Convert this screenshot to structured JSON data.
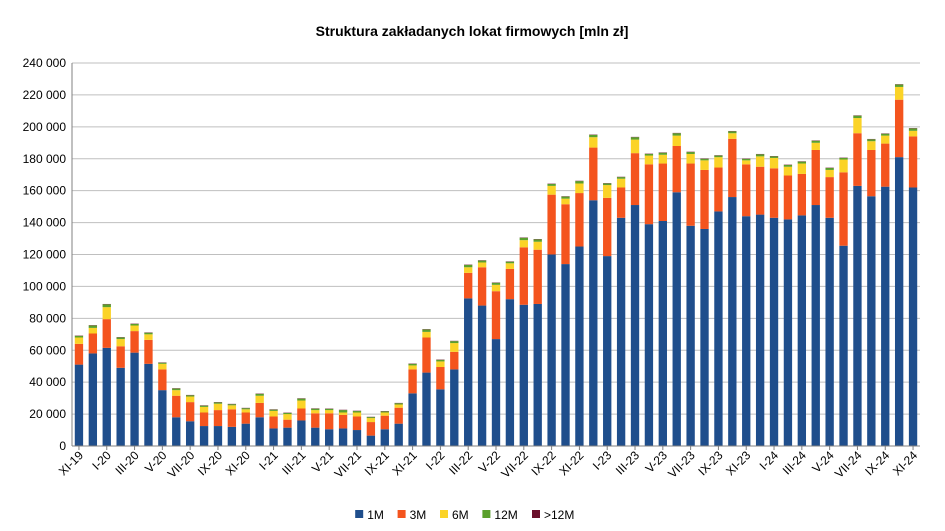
{
  "chart_data": {
    "type": "bar",
    "stacked": true,
    "title": "Struktura zakładanych lokat firmowych [mln zł]",
    "xlabel": "",
    "ylabel": "",
    "ylim": [
      0,
      240000
    ],
    "yticks": [
      0,
      20000,
      40000,
      60000,
      80000,
      100000,
      120000,
      140000,
      160000,
      180000,
      200000,
      220000,
      240000
    ],
    "ytick_labels": [
      "0",
      "20 000",
      "40 000",
      "60 000",
      "80 000",
      "100 000",
      "120 000",
      "140 000",
      "160 000",
      "180 000",
      "200 000",
      "220 000",
      "240 000"
    ],
    "grid": "horizontal",
    "legend_position": "bottom",
    "categories": [
      "XI-19",
      "XII-19",
      "I-20",
      "II-20",
      "III-20",
      "IV-20",
      "V-20",
      "VI-20",
      "VII-20",
      "VIII-20",
      "IX-20",
      "X-20",
      "XI-20",
      "XII-20",
      "I-21",
      "II-21",
      "III-21",
      "IV-21",
      "V-21",
      "VI-21",
      "VII-21",
      "VIII-21",
      "IX-21",
      "X-21",
      "XI-21",
      "XII-21",
      "I-22",
      "II-22",
      "III-22",
      "IV-22",
      "V-22",
      "VI-22",
      "VII-22",
      "VIII-22",
      "IX-22",
      "X-22",
      "XI-22",
      "XII-22",
      "I-23",
      "II-23",
      "III-23",
      "IV-23",
      "V-23",
      "VI-23",
      "VII-23",
      "VIII-23",
      "IX-23",
      "X-23",
      "XI-23",
      "XII-23",
      "I-24",
      "II-24",
      "III-24",
      "IV-24",
      "V-24",
      "VI-24",
      "VII-24",
      "VIII-24",
      "IX-24",
      "X-24",
      "XI-24"
    ],
    "tick_labels": [
      "XI-19",
      "I-20",
      "III-20",
      "V-20",
      "VII-20",
      "IX-20",
      "XI-20",
      "I-21",
      "III-21",
      "V-21",
      "VII-21",
      "IX-21",
      "XI-21",
      "I-22",
      "III-22",
      "V-22",
      "VII-22",
      "IX-22",
      "XI-22",
      "I-23",
      "III-23",
      "V-23",
      "VII-23",
      "IX-23",
      "XI-23",
      "I-24",
      "III-24",
      "V-24",
      "VII-24",
      "IX-24",
      "XI-24"
    ],
    "series": [
      {
        "name": "1M",
        "color": "#1f4e8c",
        "values": [
          51000,
          58000,
          61500,
          49000,
          58500,
          51500,
          35000,
          18000,
          15500,
          12500,
          12500,
          12000,
          14000,
          18000,
          11000,
          11500,
          16000,
          11500,
          10500,
          11000,
          10000,
          6500,
          10500,
          14000,
          33000,
          46000,
          35500,
          48000,
          92500,
          88000,
          67000,
          92000,
          88500,
          89000,
          120000,
          114000,
          125000,
          154000,
          119000,
          143000,
          151000,
          139000,
          141000,
          159000,
          138000,
          136000,
          147000,
          156000,
          144000,
          145000,
          143000,
          142000,
          144500,
          151000,
          143000,
          125500,
          163000,
          156500,
          162500,
          181000,
          162000
        ]
      },
      {
        "name": "3M",
        "color": "#f4541e",
        "values": [
          13000,
          12500,
          18000,
          13500,
          13500,
          15000,
          13000,
          13500,
          12000,
          8500,
          10000,
          11000,
          7000,
          9000,
          7500,
          5000,
          7500,
          9000,
          10000,
          8500,
          8500,
          8500,
          8500,
          10000,
          15000,
          22000,
          14000,
          11000,
          16000,
          24000,
          30000,
          19000,
          36000,
          34000,
          37500,
          37500,
          33500,
          33000,
          36500,
          19000,
          32500,
          37500,
          36000,
          29000,
          39000,
          37000,
          27500,
          36500,
          32500,
          30000,
          31000,
          27500,
          26000,
          34500,
          25500,
          46000,
          33000,
          29000,
          27000,
          36000,
          32000
        ]
      },
      {
        "name": "6M",
        "color": "#fbd327",
        "values": [
          4000,
          3500,
          7500,
          4500,
          3500,
          3500,
          3500,
          3500,
          3500,
          3500,
          4000,
          2500,
          2000,
          4500,
          3500,
          3500,
          5000,
          2000,
          2000,
          1500,
          2500,
          2500,
          2000,
          2000,
          2500,
          3500,
          3500,
          5500,
          3500,
          3000,
          4000,
          3500,
          4500,
          5000,
          5500,
          3500,
          6000,
          6500,
          8000,
          5500,
          8500,
          5500,
          5500,
          6500,
          6000,
          6000,
          6500,
          3500,
          2500,
          6500,
          6500,
          5500,
          6500,
          4500,
          4500,
          8000,
          9500,
          5500,
          5000,
          8000,
          3500
        ]
      },
      {
        "name": "12M",
        "color": "#5aa02c",
        "values": [
          1000,
          1500,
          1800,
          1000,
          1000,
          1000,
          700,
          1000,
          800,
          800,
          800,
          700,
          700,
          1200,
          800,
          700,
          1200,
          900,
          800,
          1500,
          900,
          600,
          700,
          800,
          1000,
          1500,
          1000,
          1200,
          1500,
          1200,
          1300,
          1000,
          1500,
          1500,
          1200,
          1300,
          1500,
          1500,
          1000,
          1000,
          1500,
          1000,
          1300,
          1500,
          1200,
          1000,
          1000,
          1200,
          900,
          1300,
          1000,
          1100,
          1200,
          1300,
          1200,
          1000,
          1500,
          1200,
          1200,
          1500,
          1500
        ]
      },
      {
        "name": ">12M",
        "color": "#6a0f2b",
        "values": [
          200,
          200,
          200,
          200,
          200,
          200,
          200,
          200,
          200,
          200,
          200,
          200,
          200,
          200,
          200,
          200,
          200,
          200,
          200,
          200,
          200,
          200,
          200,
          200,
          200,
          200,
          200,
          200,
          200,
          200,
          200,
          200,
          200,
          200,
          200,
          200,
          200,
          200,
          200,
          200,
          200,
          200,
          200,
          200,
          200,
          200,
          200,
          200,
          200,
          200,
          200,
          200,
          200,
          200,
          200,
          200,
          200,
          200,
          200,
          200,
          200
        ]
      }
    ]
  }
}
